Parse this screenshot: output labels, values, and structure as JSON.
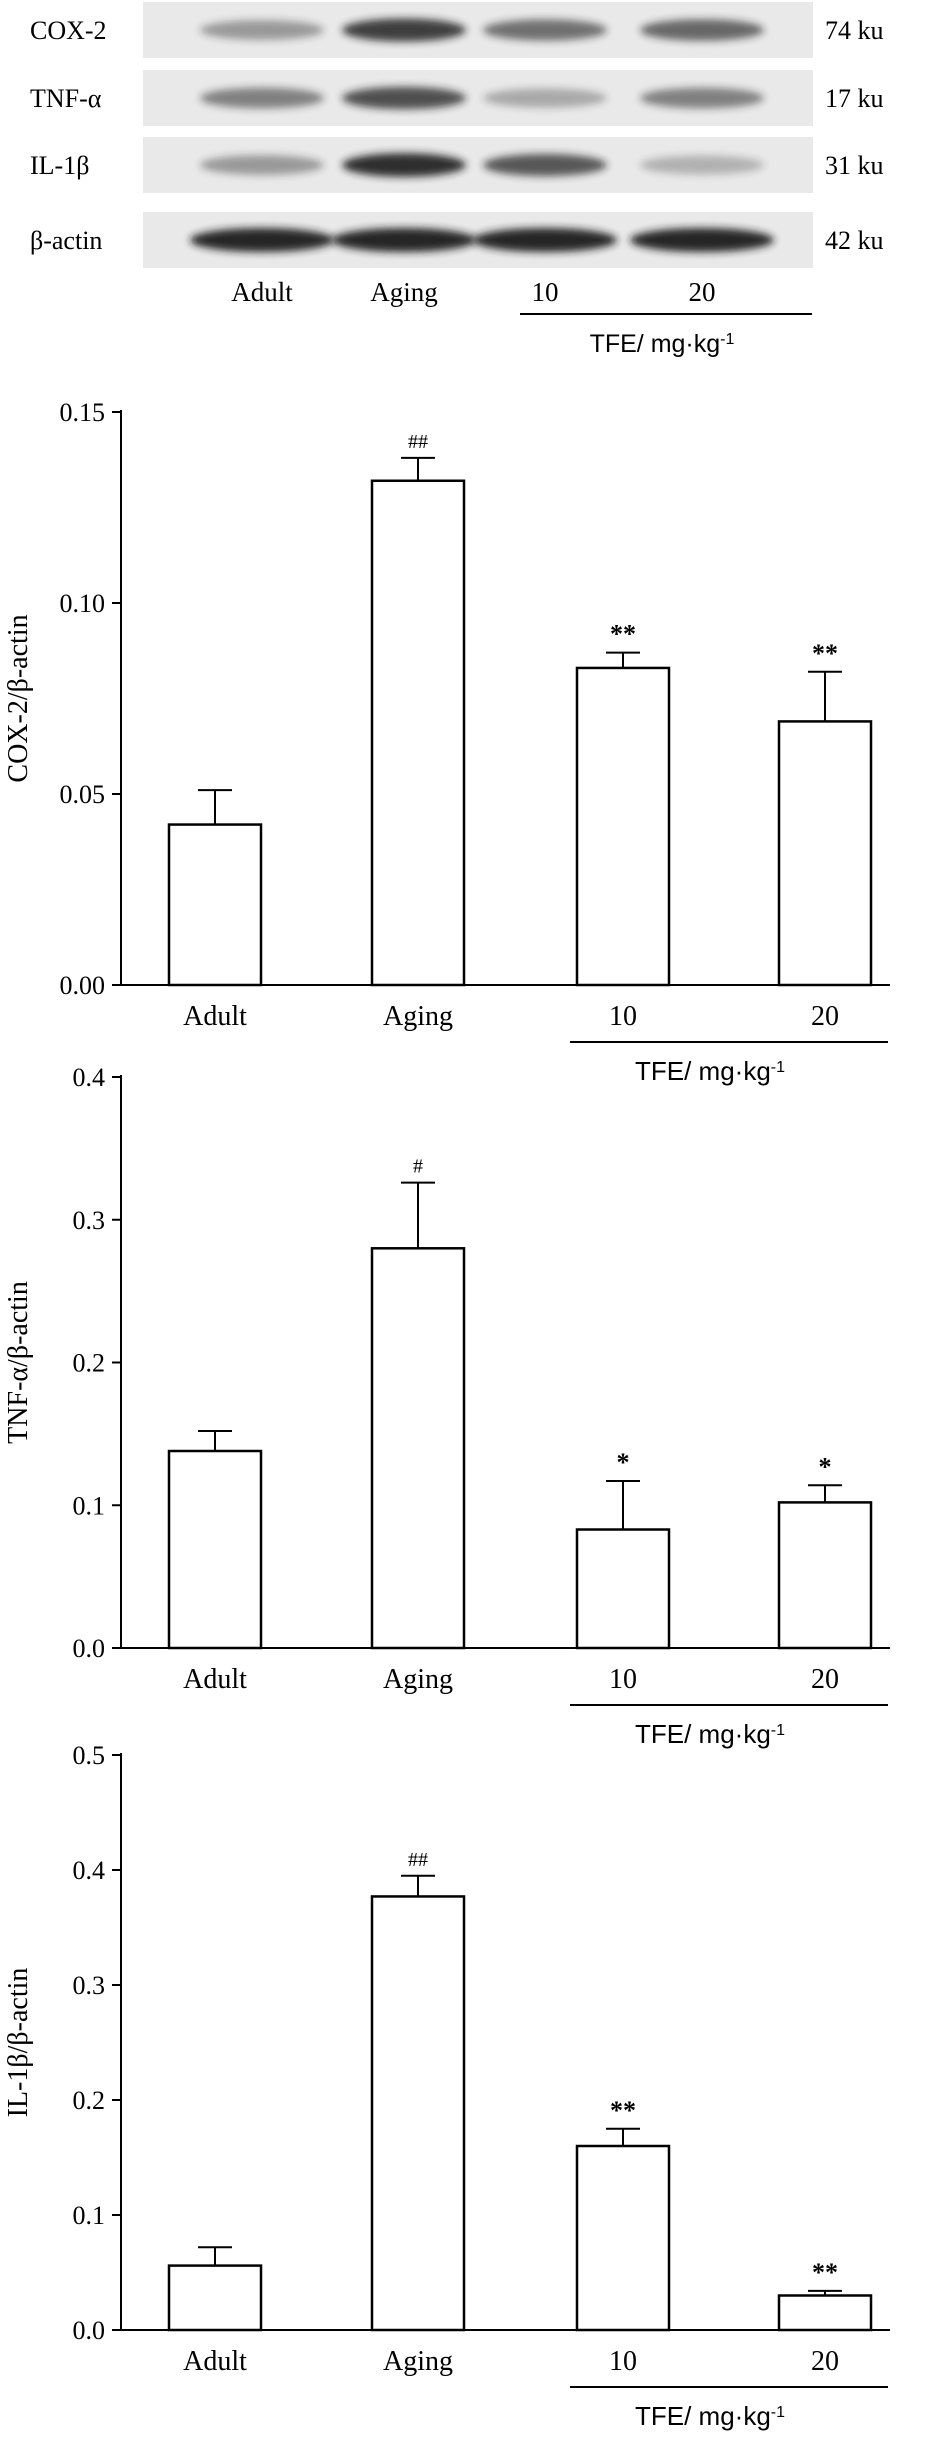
{
  "blot": {
    "rows": [
      {
        "label": "COX-2",
        "size": "74 ku",
        "intensity": [
          0.3,
          0.85,
          0.55,
          0.6
        ]
      },
      {
        "label": "TNF-α",
        "size": "17 ku",
        "intensity": [
          0.45,
          0.75,
          0.2,
          0.45
        ]
      },
      {
        "label": "IL-1β",
        "size": "31 ku",
        "intensity": [
          0.3,
          0.95,
          0.7,
          0.15
        ]
      },
      {
        "label": "β-actin",
        "size": "42 ku",
        "intensity": [
          1.0,
          1.0,
          1.0,
          1.0
        ]
      }
    ],
    "lanes": [
      "Adult",
      "Aging",
      "10",
      "20"
    ],
    "group_label": "TFE/ mg·kg",
    "group_label_sup": "-1"
  },
  "chart_data": [
    {
      "type": "bar",
      "categories": [
        "Adult",
        "Aging",
        "10",
        "20"
      ],
      "values": [
        0.042,
        0.132,
        0.083,
        0.069
      ],
      "errors": [
        0.009,
        0.006,
        0.004,
        0.013
      ],
      "annotations": [
        "",
        "##",
        "**",
        "**"
      ],
      "ylabel": "COX-2/β-actin",
      "ylim": [
        0,
        0.15
      ],
      "yticks": [
        0.0,
        0.05,
        0.1,
        0.15
      ],
      "yticklabels": [
        "0.00",
        "0.05",
        "0.10",
        "0.15"
      ],
      "group_label": "TFE/ mg·kg",
      "group_label_sup": "-1"
    },
    {
      "type": "bar",
      "categories": [
        "Adult",
        "Aging",
        "10",
        "20"
      ],
      "values": [
        0.138,
        0.28,
        0.083,
        0.102
      ],
      "errors": [
        0.014,
        0.046,
        0.034,
        0.012
      ],
      "annotations": [
        "",
        "#",
        "*",
        "*"
      ],
      "ylabel": "TNF-α/β-actin",
      "ylim": [
        0,
        0.4
      ],
      "yticks": [
        0.0,
        0.1,
        0.2,
        0.3,
        0.4
      ],
      "yticklabels": [
        "0.0",
        "0.1",
        "0.2",
        "0.3",
        "0.4"
      ],
      "group_label": "TFE/ mg·kg",
      "group_label_sup": "-1"
    },
    {
      "type": "bar",
      "categories": [
        "Adult",
        "Aging",
        "10",
        "20"
      ],
      "values": [
        0.056,
        0.377,
        0.16,
        0.03
      ],
      "errors": [
        0.016,
        0.018,
        0.015,
        0.004
      ],
      "annotations": [
        "",
        "##",
        "**",
        "**"
      ],
      "ylabel": "IL-1β/β-actin",
      "ylim": [
        0,
        0.5
      ],
      "yticks": [
        0.0,
        0.1,
        0.2,
        0.3,
        0.4,
        0.5
      ],
      "yticklabels": [
        "0.0",
        "0.1",
        "0.2",
        "0.3",
        "0.4",
        "0.5"
      ],
      "group_label": "TFE/ mg·kg",
      "group_label_sup": "-1"
    }
  ]
}
